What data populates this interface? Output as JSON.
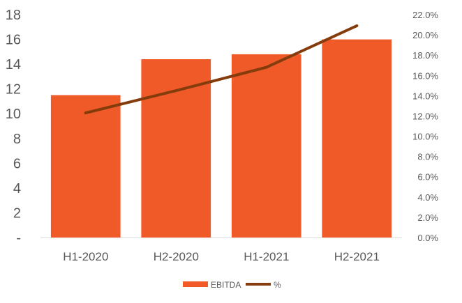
{
  "chart_data": {
    "type": "bar",
    "categories": [
      "H1-2020",
      "H2-2020",
      "H1-2021",
      "H2-2021"
    ],
    "series": [
      {
        "name": "EBITDA",
        "type": "bar",
        "axis": "left",
        "color": "#F05A28",
        "values": [
          11.5,
          14.4,
          14.8,
          16.0
        ]
      },
      {
        "name": "%",
        "type": "line",
        "axis": "right",
        "color": "#843C0C",
        "values": [
          12.3,
          14.5,
          16.8,
          20.9
        ]
      }
    ],
    "y_left": {
      "ylim": [
        0,
        18
      ],
      "ticks": [
        "-",
        "2",
        "4",
        "6",
        "8",
        "10",
        "12",
        "14",
        "16",
        "18"
      ]
    },
    "y_right": {
      "ylim": [
        0,
        22
      ],
      "unit": "%",
      "ticks": [
        "0.0%",
        "2.0%",
        "4.0%",
        "6.0%",
        "8.0%",
        "10.0%",
        "12.0%",
        "14.0%",
        "16.0%",
        "18.0%",
        "20.0%",
        "22.0%"
      ]
    },
    "grid": false,
    "legend": {
      "position": "bottom",
      "entries": [
        "EBITDA",
        "%"
      ]
    }
  }
}
